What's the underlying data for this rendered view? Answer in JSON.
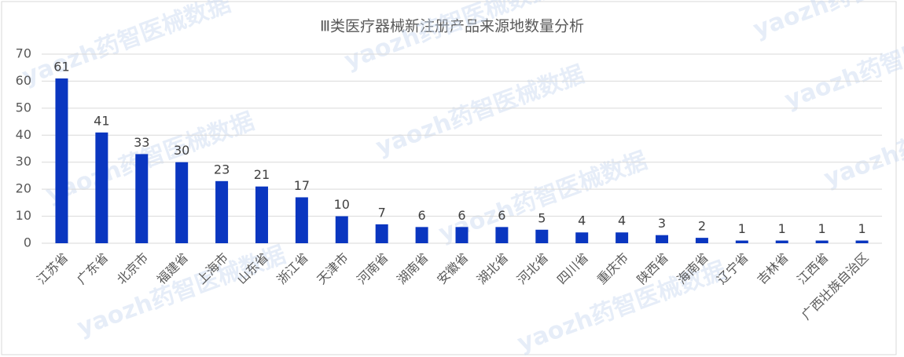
{
  "chart_data": {
    "type": "bar",
    "title": "Ⅲ类医疗器械新注册产品来源地数量分析",
    "watermark": "yaozh药智医械数据",
    "categories": [
      "江苏省",
      "广东省",
      "北京市",
      "福建省",
      "上海市",
      "山东省",
      "浙江省",
      "天津市",
      "河南省",
      "湖南省",
      "安徽省",
      "湖北省",
      "河北省",
      "四川省",
      "重庆市",
      "陕西省",
      "海南省",
      "辽宁省",
      "吉林省",
      "江西省",
      "广西壮族自治区"
    ],
    "values": [
      61,
      41,
      33,
      30,
      23,
      21,
      17,
      10,
      7,
      6,
      6,
      6,
      5,
      4,
      4,
      3,
      2,
      1,
      1,
      1,
      1
    ],
    "color": "#0a36c0",
    "ylim": [
      0,
      70
    ],
    "yticks": [
      0,
      10,
      20,
      30,
      40,
      50,
      60,
      70
    ],
    "grid": true
  }
}
